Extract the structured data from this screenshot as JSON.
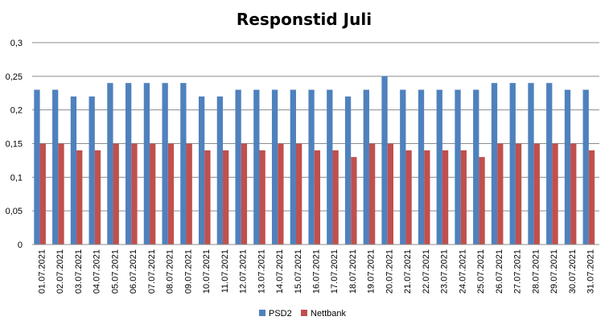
{
  "chart_data": {
    "type": "bar",
    "title": "Responstid Juli",
    "xlabel": "",
    "ylabel": "",
    "ylim": [
      0,
      0.3
    ],
    "yticks": [
      "0",
      "0,05",
      "0,1",
      "0,15",
      "0,2",
      "0,25",
      "0,3"
    ],
    "grid": true,
    "legend_position": "bottom",
    "categories": [
      "01.07.2021",
      "02.07.2021",
      "03.07.2021",
      "04.07.2021",
      "05.07.2021",
      "06.07.2021",
      "07.07.2021",
      "08.07.2021",
      "09.07.2021",
      "10.07.2021",
      "11.07.2021",
      "12.07.2021",
      "13.07.2021",
      "14.07.2021",
      "15.07.2021",
      "16.07.2021",
      "17.07.2021",
      "18.07.2021",
      "19.07.2021",
      "20.07.2021",
      "21.07.2021",
      "22.07.2021",
      "23.07.2021",
      "24.07.2021",
      "25.07.2021",
      "26.07.2021",
      "27.07.2021",
      "28.07.2021",
      "29.07.2021",
      "30.07.2021",
      "31.07.2021"
    ],
    "series": [
      {
        "name": "PSD2",
        "color": "#4F81BD",
        "values": [
          0.23,
          0.23,
          0.22,
          0.22,
          0.24,
          0.24,
          0.24,
          0.24,
          0.24,
          0.22,
          0.22,
          0.23,
          0.23,
          0.23,
          0.23,
          0.23,
          0.23,
          0.22,
          0.23,
          0.25,
          0.23,
          0.23,
          0.23,
          0.23,
          0.23,
          0.24,
          0.24,
          0.24,
          0.24,
          0.23,
          0.23
        ]
      },
      {
        "name": "Nettbank",
        "color": "#C0504D",
        "values": [
          0.15,
          0.15,
          0.14,
          0.14,
          0.15,
          0.15,
          0.15,
          0.15,
          0.15,
          0.14,
          0.14,
          0.15,
          0.14,
          0.15,
          0.15,
          0.14,
          0.14,
          0.13,
          0.15,
          0.15,
          0.14,
          0.14,
          0.14,
          0.14,
          0.13,
          0.15,
          0.15,
          0.15,
          0.15,
          0.15,
          0.14
        ]
      }
    ]
  }
}
